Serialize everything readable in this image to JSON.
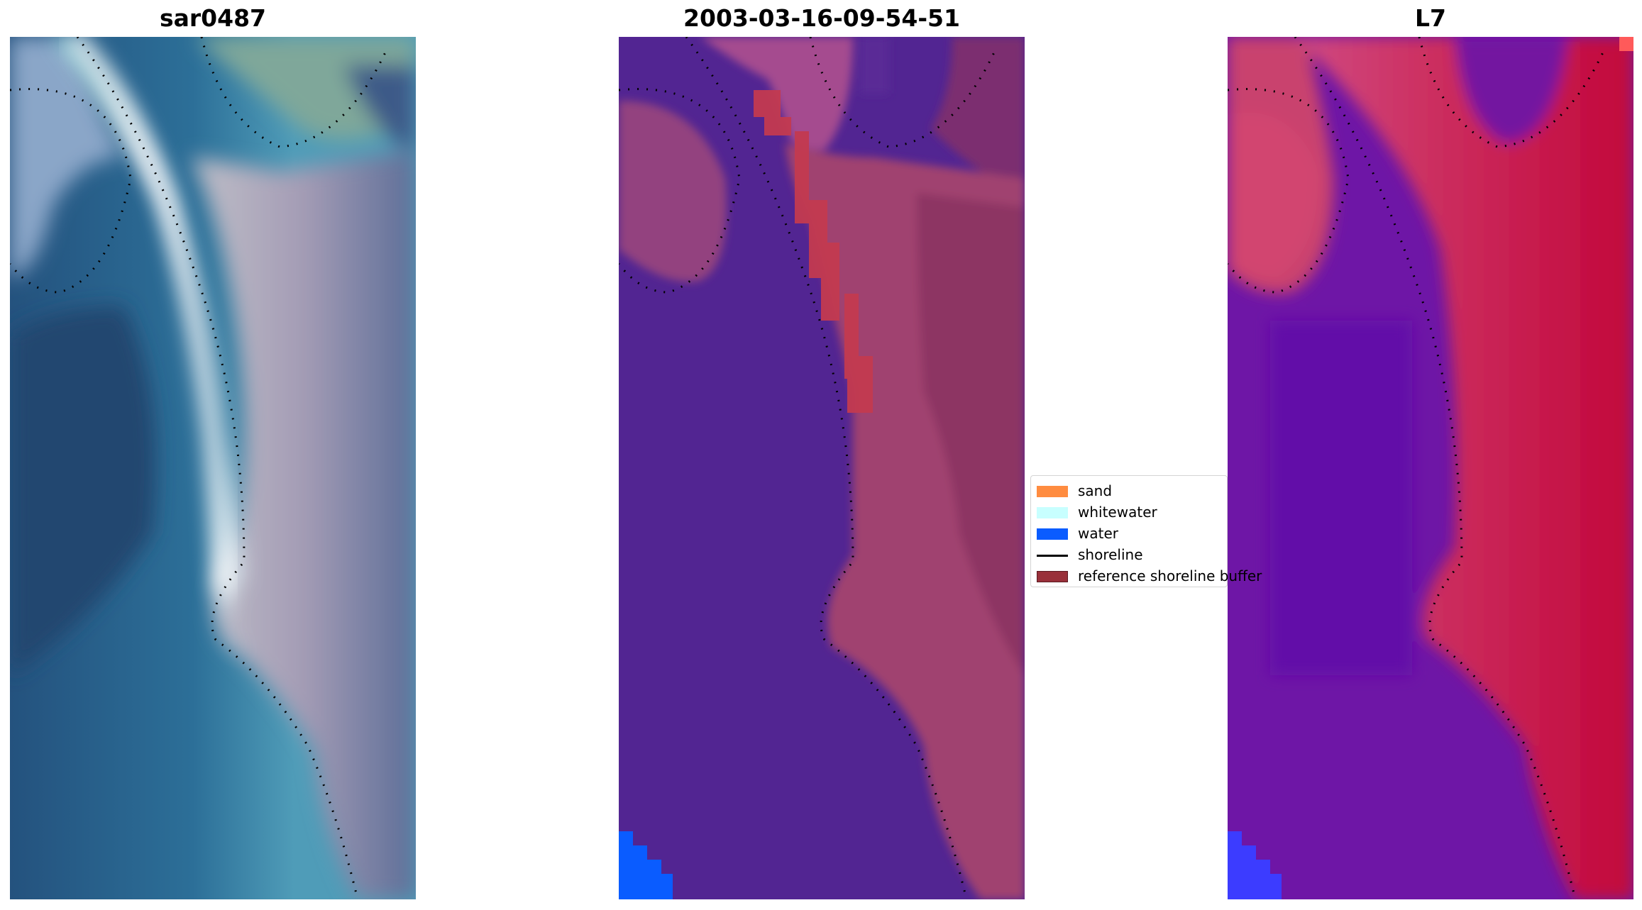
{
  "panels": [
    {
      "title": "sar0487"
    },
    {
      "title": "2003-03-16-09-54-51"
    },
    {
      "title": "L7"
    }
  ],
  "legend": {
    "items": [
      {
        "label": "sand",
        "color": "#ff8c40"
      },
      {
        "label": "whitewater",
        "color": "#c8ffff"
      },
      {
        "label": "water",
        "color": "#0a5cff"
      },
      {
        "label": "shoreline",
        "color": "#000000"
      },
      {
        "label": "reference shoreline buffer",
        "color": "#99303a"
      }
    ]
  }
}
